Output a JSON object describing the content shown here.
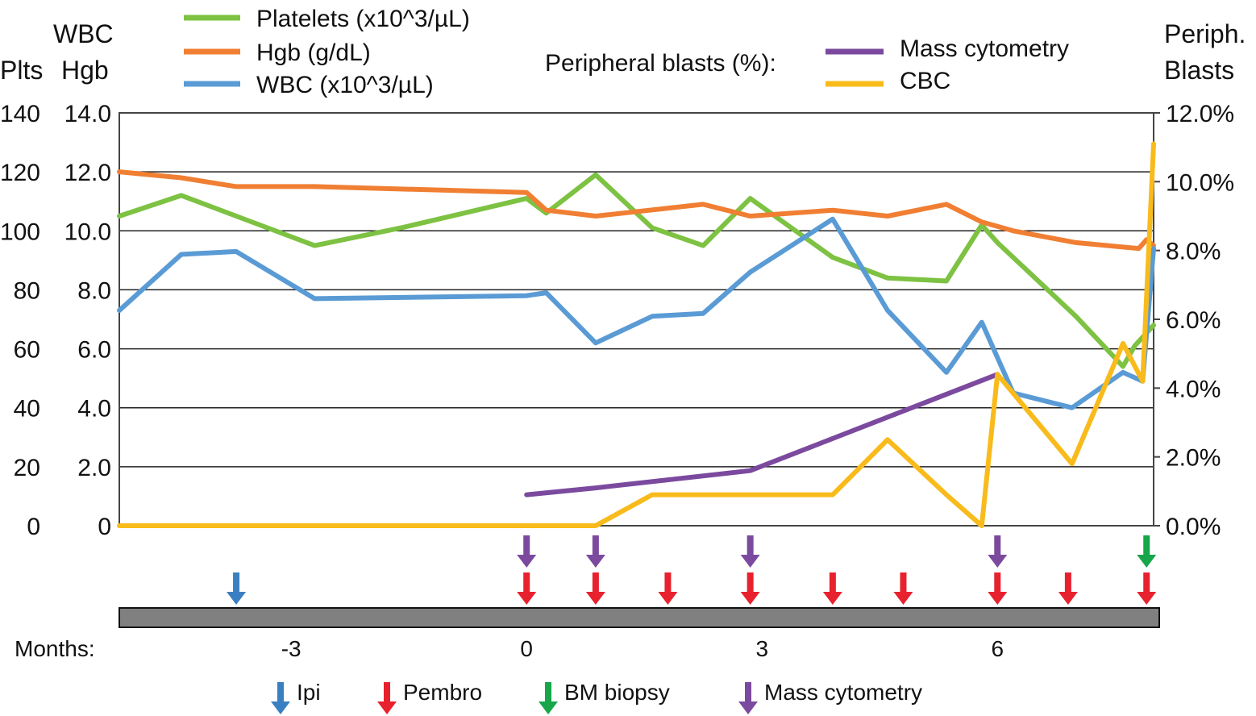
{
  "colors": {
    "platelets": "#7dc242",
    "hgb": "#f07f33",
    "wbc": "#5a9bd5",
    "mass_cytometry": "#7b4a9e",
    "cbc": "#f9bb1b",
    "ipi": "#3a7fc1",
    "pembro": "#e8212e",
    "bm_biopsy": "#17a64a",
    "timeline_bar": "#808080"
  },
  "chart_data": {
    "type": "line",
    "title": "",
    "xlabel": "Months:",
    "x_range": [
      -5.19,
      7.99
    ],
    "x_ticks": [
      -3,
      0,
      3,
      6
    ],
    "x_tick_labels": [
      "-3",
      "0",
      "3",
      "6"
    ],
    "left_axis": {
      "label_line1_outer": "Plts",
      "label_line1_inner": "WBC",
      "label_line2_inner": "Hgb",
      "plts_ticks": [
        "140",
        "120",
        "100",
        "80",
        "60",
        "40",
        "20",
        "0"
      ],
      "wbc_hgb_ticks": [
        "14.0",
        "12.0",
        "10.0",
        "8.0",
        "6.0",
        "4.0",
        "2.0",
        "0"
      ],
      "ylim_plts": [
        0,
        140
      ],
      "ylim_wbc_hgb": [
        0,
        14
      ]
    },
    "right_axis": {
      "label_line1": "Periph.",
      "label_line2": "Blasts",
      "ticks": [
        "12.0%",
        "10.0%",
        "8.0%",
        "6.0%",
        "4.0%",
        "2.0%",
        "0.0%"
      ],
      "ylim": [
        0,
        12
      ]
    },
    "series": [
      {
        "name": "Platelets (x10^3/µL)",
        "key": "platelets",
        "axis": "left",
        "x": [
          -5.19,
          -4.4,
          -3.7,
          -2.7,
          -1.6,
          0.0,
          0.25,
          0.88,
          1.6,
          2.25,
          2.85,
          3.9,
          4.6,
          5.35,
          5.8,
          6.0,
          7.0,
          7.6,
          7.75,
          7.99
        ],
        "y": [
          10.5,
          11.2,
          10.5,
          9.5,
          10.1,
          11.1,
          10.6,
          11.9,
          10.1,
          9.5,
          11.1,
          9.1,
          8.4,
          8.3,
          10.2,
          9.6,
          7.1,
          5.4,
          6.1,
          6.8
        ]
      },
      {
        "name": "Hgb (g/dL)",
        "key": "hgb",
        "axis": "left",
        "x": [
          -5.19,
          -4.4,
          -3.7,
          -2.7,
          0.0,
          0.25,
          0.88,
          2.25,
          2.85,
          3.9,
          4.6,
          5.35,
          5.8,
          6.2,
          7.0,
          7.8,
          7.9,
          7.99
        ],
        "y": [
          12.0,
          11.8,
          11.5,
          11.5,
          11.3,
          10.7,
          10.5,
          10.9,
          10.5,
          10.7,
          10.5,
          10.9,
          10.3,
          10.0,
          9.6,
          9.4,
          9.7,
          9.5
        ]
      },
      {
        "name": "WBC (x10^3/µL)",
        "key": "wbc",
        "axis": "left",
        "x": [
          -5.19,
          -4.4,
          -3.7,
          -2.7,
          0.0,
          0.25,
          0.88,
          1.6,
          2.25,
          2.85,
          3.9,
          4.6,
          5.35,
          5.8,
          6.2,
          6.95,
          7.6,
          7.85,
          7.99
        ],
        "y": [
          7.3,
          9.2,
          9.3,
          7.7,
          7.8,
          7.9,
          6.2,
          7.1,
          7.2,
          8.6,
          10.4,
          7.3,
          5.2,
          6.9,
          4.5,
          4.0,
          5.2,
          4.9,
          9.4
        ]
      },
      {
        "name": "Mass cytometry",
        "key": "mass_cytometry",
        "axis": "right",
        "x": [
          0.0,
          0.88,
          2.85,
          6.0
        ],
        "y": [
          0.9,
          1.1,
          1.6,
          4.4
        ]
      },
      {
        "name": "CBC",
        "key": "cbc",
        "axis": "right",
        "x": [
          -5.19,
          -1.6,
          0.88,
          1.6,
          2.25,
          2.85,
          3.9,
          4.6,
          5.35,
          5.8,
          6.0,
          6.95,
          7.6,
          7.85,
          7.99
        ],
        "y": [
          0.0,
          0.0,
          0.0,
          0.9,
          0.9,
          0.9,
          0.9,
          2.5,
          0.9,
          0.0,
          4.4,
          1.8,
          5.3,
          4.2,
          11.1
        ]
      }
    ],
    "legend": {
      "left_items": [
        {
          "key": "platelets",
          "label": "Platelets (x10^3/µL)"
        },
        {
          "key": "hgb",
          "label": "Hgb (g/dL)"
        },
        {
          "key": "wbc",
          "label": "WBC (x10^3/µL)"
        }
      ],
      "right_title": "Peripheral blasts (%):",
      "right_items": [
        {
          "key": "mass_cytometry",
          "label": "Mass cytometry"
        },
        {
          "key": "cbc",
          "label": "CBC"
        }
      ]
    },
    "events": {
      "ipi": [
        -3.7
      ],
      "pembro": [
        0.0,
        0.88,
        1.8,
        2.85,
        3.9,
        4.8,
        6.0,
        6.9,
        7.9
      ],
      "mass_cytometry": [
        0.0,
        0.88,
        2.85,
        6.0
      ],
      "bm_biopsy": [
        7.9
      ]
    },
    "event_legend": [
      {
        "key": "ipi",
        "label": "Ipi"
      },
      {
        "key": "pembro",
        "label": "Pembro"
      },
      {
        "key": "bm_biopsy",
        "label": "BM biopsy"
      },
      {
        "key": "mass_cytometry",
        "label": "Mass cytometry"
      }
    ]
  }
}
